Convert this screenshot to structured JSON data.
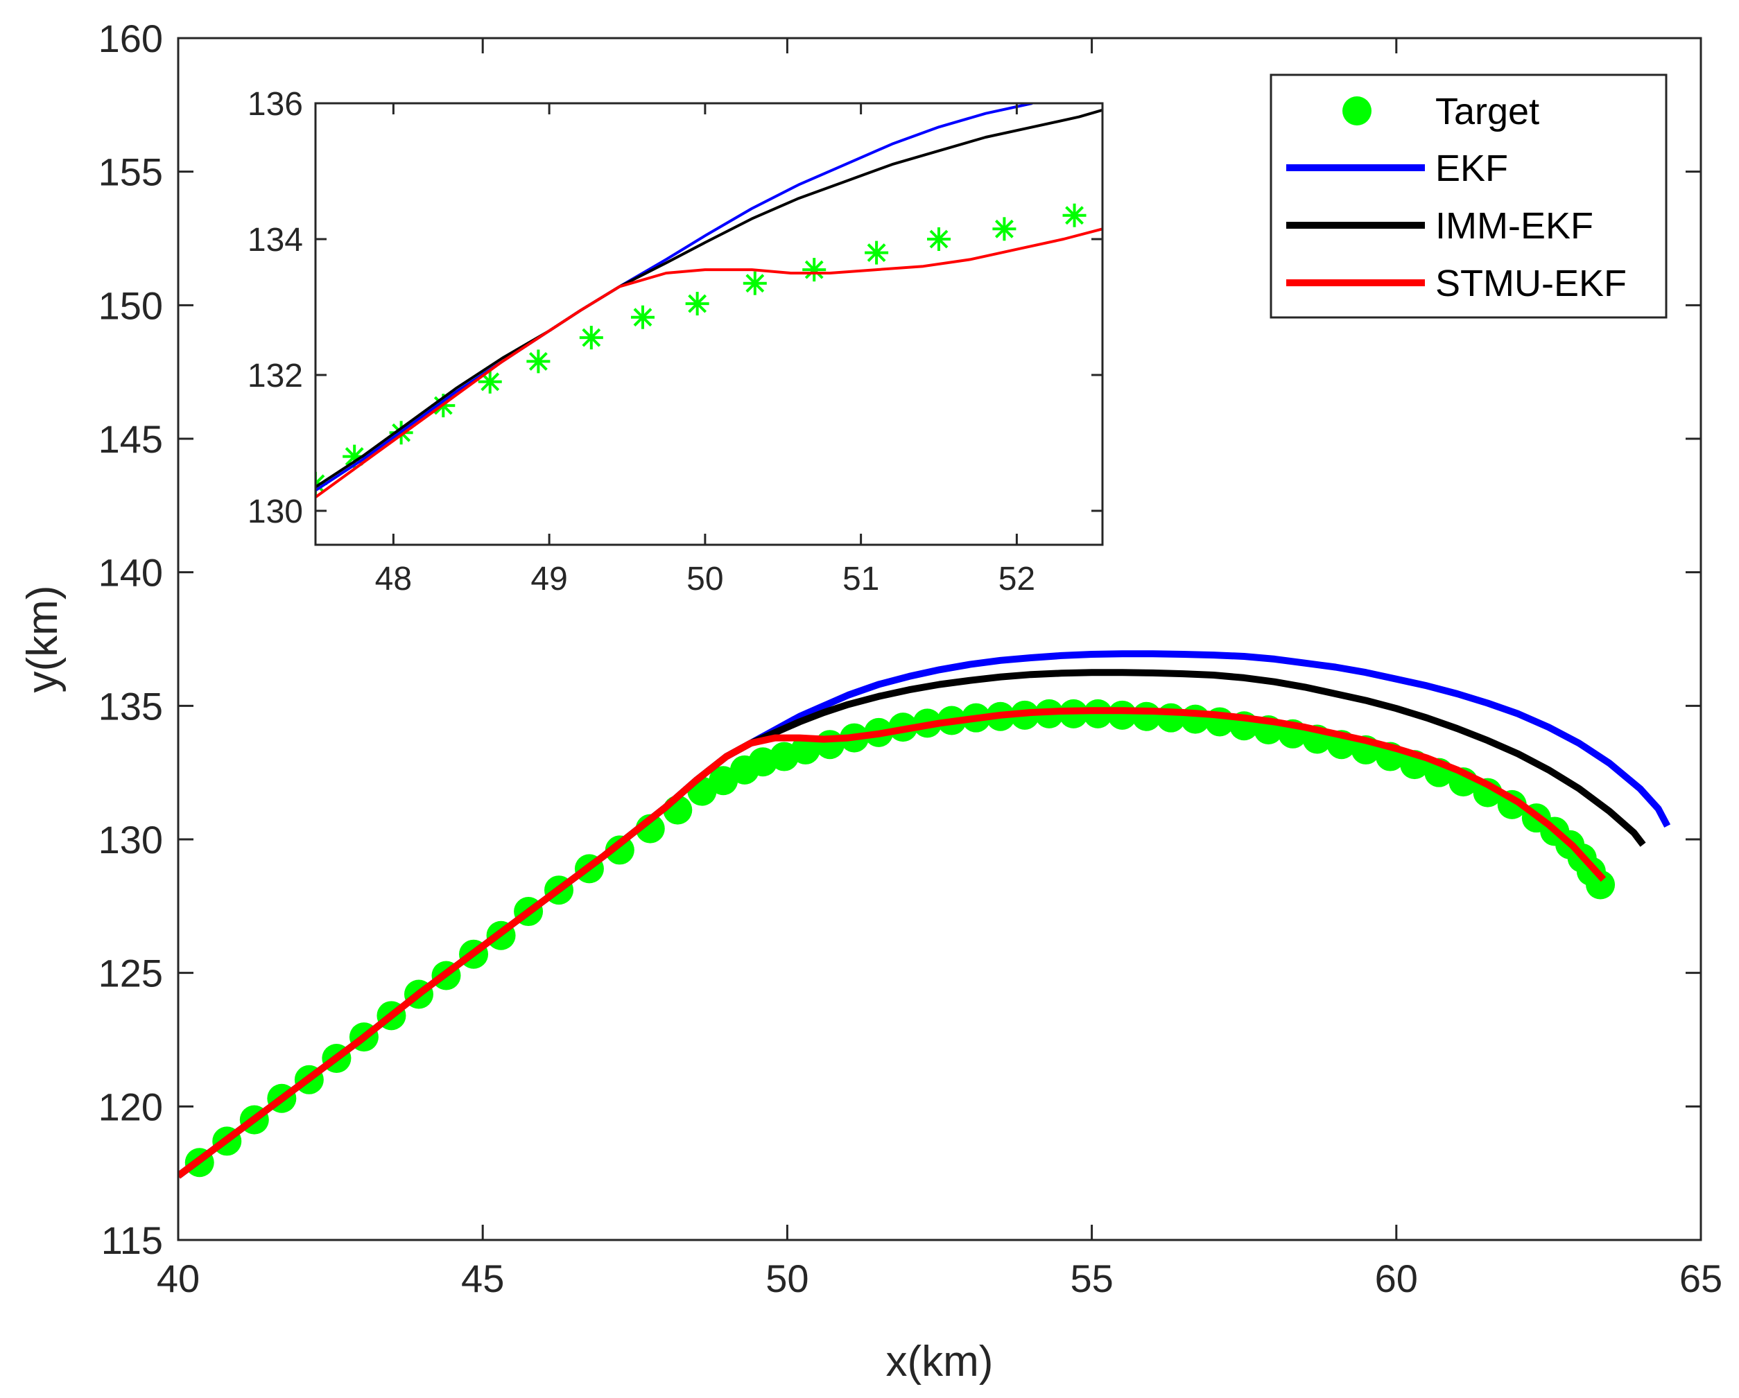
{
  "chart_data": [
    {
      "type": "line",
      "panel": "main",
      "title": "",
      "xlabel": "x(km)",
      "ylabel": "y(km)",
      "xlim": [
        40,
        65
      ],
      "ylim": [
        115,
        160
      ],
      "xticks": [
        40,
        45,
        50,
        55,
        60,
        65
      ],
      "yticks": [
        115,
        120,
        125,
        130,
        135,
        140,
        145,
        150,
        155,
        160
      ],
      "grid": false,
      "legend": {
        "location": "top-right",
        "entries": [
          "Target",
          "EKF",
          "IMM-EKF",
          "STMU-EKF"
        ]
      },
      "series": [
        {
          "name": "Target",
          "style": "markers",
          "color": "#00ff00",
          "x": [
            40.35,
            40.8,
            41.25,
            41.7,
            42.15,
            42.6,
            43.05,
            43.5,
            43.95,
            44.4,
            44.85,
            45.3,
            45.75,
            46.25,
            46.75,
            47.25,
            47.75,
            48.2,
            48.6,
            48.95,
            49.3,
            49.6,
            49.95,
            50.3,
            50.7,
            51.1,
            51.5,
            51.9,
            52.3,
            52.7,
            53.1,
            53.5,
            53.9,
            54.3,
            54.7,
            55.1,
            55.5,
            55.9,
            56.3,
            56.7,
            57.1,
            57.5,
            57.9,
            58.3,
            58.7,
            59.1,
            59.5,
            59.9,
            60.3,
            60.7,
            61.1,
            61.5,
            61.9,
            62.3,
            62.6,
            62.85,
            63.05,
            63.2,
            63.35
          ],
          "y": [
            117.9,
            118.7,
            119.5,
            120.3,
            121.0,
            121.8,
            122.6,
            123.4,
            124.2,
            124.9,
            125.7,
            126.4,
            127.3,
            128.1,
            128.9,
            129.6,
            130.4,
            131.1,
            131.8,
            132.2,
            132.6,
            132.9,
            133.1,
            133.35,
            133.55,
            133.8,
            134.0,
            134.2,
            134.35,
            134.45,
            134.55,
            134.6,
            134.65,
            134.7,
            134.7,
            134.7,
            134.65,
            134.6,
            134.55,
            134.5,
            134.4,
            134.25,
            134.1,
            133.95,
            133.75,
            133.55,
            133.35,
            133.1,
            132.8,
            132.5,
            132.15,
            131.75,
            131.3,
            130.8,
            130.3,
            129.8,
            129.3,
            128.8,
            128.3
          ]
        },
        {
          "name": "EKF",
          "style": "line",
          "color": "#0000ff",
          "x": [
            40,
            41,
            42,
            43,
            44,
            45,
            46,
            47,
            47.5,
            48,
            48.5,
            49,
            49.4,
            49.8,
            50.2,
            50.6,
            51,
            51.5,
            52,
            52.5,
            53,
            53.5,
            54,
            54.5,
            55,
            55.5,
            56,
            56.5,
            57,
            57.5,
            58,
            58.5,
            59,
            59.5,
            60,
            60.5,
            61,
            61.5,
            62,
            62.5,
            63,
            63.5,
            64,
            64.3,
            64.45
          ],
          "y": [
            117.4,
            119.1,
            120.8,
            122.5,
            124.3,
            126.0,
            127.7,
            129.4,
            130.3,
            131.2,
            132.2,
            133.1,
            133.6,
            134.1,
            134.6,
            135.0,
            135.4,
            135.8,
            136.1,
            136.35,
            136.55,
            136.7,
            136.8,
            136.88,
            136.93,
            136.95,
            136.95,
            136.93,
            136.9,
            136.85,
            136.75,
            136.6,
            136.45,
            136.25,
            136.0,
            135.75,
            135.45,
            135.1,
            134.7,
            134.2,
            133.6,
            132.85,
            131.9,
            131.15,
            130.5
          ]
        },
        {
          "name": "IMM-EKF",
          "style": "line",
          "color": "#000000",
          "x": [
            40,
            41,
            42,
            43,
            44,
            45,
            46,
            47,
            47.5,
            48,
            48.5,
            49,
            49.4,
            49.8,
            50.2,
            50.6,
            51,
            51.5,
            52,
            52.5,
            53,
            53.5,
            54,
            54.5,
            55,
            55.5,
            56,
            56.5,
            57,
            57.5,
            58,
            58.5,
            59,
            59.5,
            60,
            60.5,
            61,
            61.5,
            62,
            62.5,
            63,
            63.5,
            63.9,
            64.05
          ],
          "y": [
            117.4,
            119.1,
            120.8,
            122.5,
            124.3,
            126.0,
            127.7,
            129.4,
            130.3,
            131.2,
            132.2,
            133.1,
            133.6,
            134.0,
            134.4,
            134.75,
            135.05,
            135.35,
            135.6,
            135.8,
            135.95,
            136.08,
            136.17,
            136.22,
            136.25,
            136.25,
            136.23,
            136.2,
            136.15,
            136.05,
            135.9,
            135.7,
            135.45,
            135.2,
            134.9,
            134.55,
            134.15,
            133.7,
            133.2,
            132.6,
            131.9,
            131.05,
            130.25,
            129.8
          ]
        },
        {
          "name": "STMU-EKF",
          "style": "line",
          "color": "#ff0000",
          "x": [
            40,
            41,
            42,
            43,
            44,
            45,
            46,
            47,
            47.5,
            48,
            48.5,
            49,
            49.4,
            49.8,
            50.2,
            50.6,
            51,
            51.5,
            52,
            52.5,
            53,
            53.5,
            54,
            54.5,
            55,
            55.5,
            56,
            56.5,
            57,
            57.5,
            58,
            58.5,
            59,
            59.5,
            60,
            60.5,
            61,
            61.5,
            62,
            62.5,
            62.9,
            63.2,
            63.4
          ],
          "y": [
            117.4,
            119.1,
            120.8,
            122.5,
            124.3,
            126.0,
            127.7,
            129.4,
            130.3,
            131.2,
            132.2,
            133.1,
            133.6,
            133.8,
            133.8,
            133.75,
            133.8,
            133.95,
            134.15,
            134.35,
            134.5,
            134.65,
            134.75,
            134.8,
            134.82,
            134.82,
            134.8,
            134.75,
            134.67,
            134.55,
            134.4,
            134.2,
            133.95,
            133.7,
            133.4,
            133.05,
            132.6,
            132.05,
            131.4,
            130.55,
            129.75,
            129.0,
            128.5
          ]
        }
      ]
    },
    {
      "type": "line",
      "panel": "inset",
      "title": "",
      "xlabel": "",
      "ylabel": "",
      "xlim": [
        47.5,
        52.55
      ],
      "ylim": [
        129.5,
        136
      ],
      "xticks": [
        48,
        49,
        50,
        51,
        52
      ],
      "yticks": [
        130,
        132,
        134,
        136
      ],
      "grid": false,
      "series": [
        {
          "name": "Target",
          "style": "markers",
          "color": "#00ff00",
          "x": [
            47.5,
            47.75,
            48.05,
            48.32,
            48.62,
            48.93,
            49.27,
            49.6,
            49.95,
            50.32,
            50.7,
            51.1,
            51.5,
            51.92,
            52.37
          ],
          "y": [
            130.4,
            130.8,
            131.15,
            131.55,
            131.9,
            132.2,
            132.55,
            132.85,
            133.05,
            133.35,
            133.55,
            133.8,
            134.0,
            134.15,
            134.35
          ]
        },
        {
          "name": "EKF",
          "style": "line",
          "color": "#0000ff",
          "x": [
            47.5,
            47.8,
            48.1,
            48.4,
            48.7,
            49.0,
            49.2,
            49.45,
            49.75,
            50.0,
            50.3,
            50.6,
            50.9,
            51.2,
            51.5,
            51.8,
            52.1
          ],
          "y": [
            130.3,
            130.75,
            131.25,
            131.75,
            132.2,
            132.65,
            132.95,
            133.3,
            133.7,
            134.05,
            134.45,
            134.8,
            135.1,
            135.4,
            135.65,
            135.85,
            136.0
          ]
        },
        {
          "name": "IMM-EKF",
          "style": "line",
          "color": "#000000",
          "x": [
            47.5,
            47.8,
            48.1,
            48.4,
            48.7,
            49.0,
            49.2,
            49.45,
            49.75,
            50.0,
            50.3,
            50.6,
            50.9,
            51.2,
            51.5,
            51.8,
            52.1,
            52.4,
            52.55
          ],
          "y": [
            130.35,
            130.8,
            131.3,
            131.8,
            132.25,
            132.65,
            132.95,
            133.3,
            133.65,
            133.95,
            134.3,
            134.6,
            134.85,
            135.1,
            135.3,
            135.5,
            135.65,
            135.8,
            135.9
          ]
        },
        {
          "name": "STMU-EKF",
          "style": "line",
          "color": "#ff0000",
          "x": [
            47.5,
            47.8,
            48.1,
            48.4,
            48.7,
            49.0,
            49.2,
            49.45,
            49.75,
            50.0,
            50.3,
            50.55,
            50.8,
            51.1,
            51.4,
            51.7,
            52.0,
            52.3,
            52.55
          ],
          "y": [
            130.2,
            130.7,
            131.2,
            131.7,
            132.2,
            132.65,
            132.95,
            133.3,
            133.5,
            133.55,
            133.55,
            133.5,
            133.5,
            133.55,
            133.6,
            133.7,
            133.85,
            134.0,
            134.15
          ]
        }
      ]
    }
  ]
}
